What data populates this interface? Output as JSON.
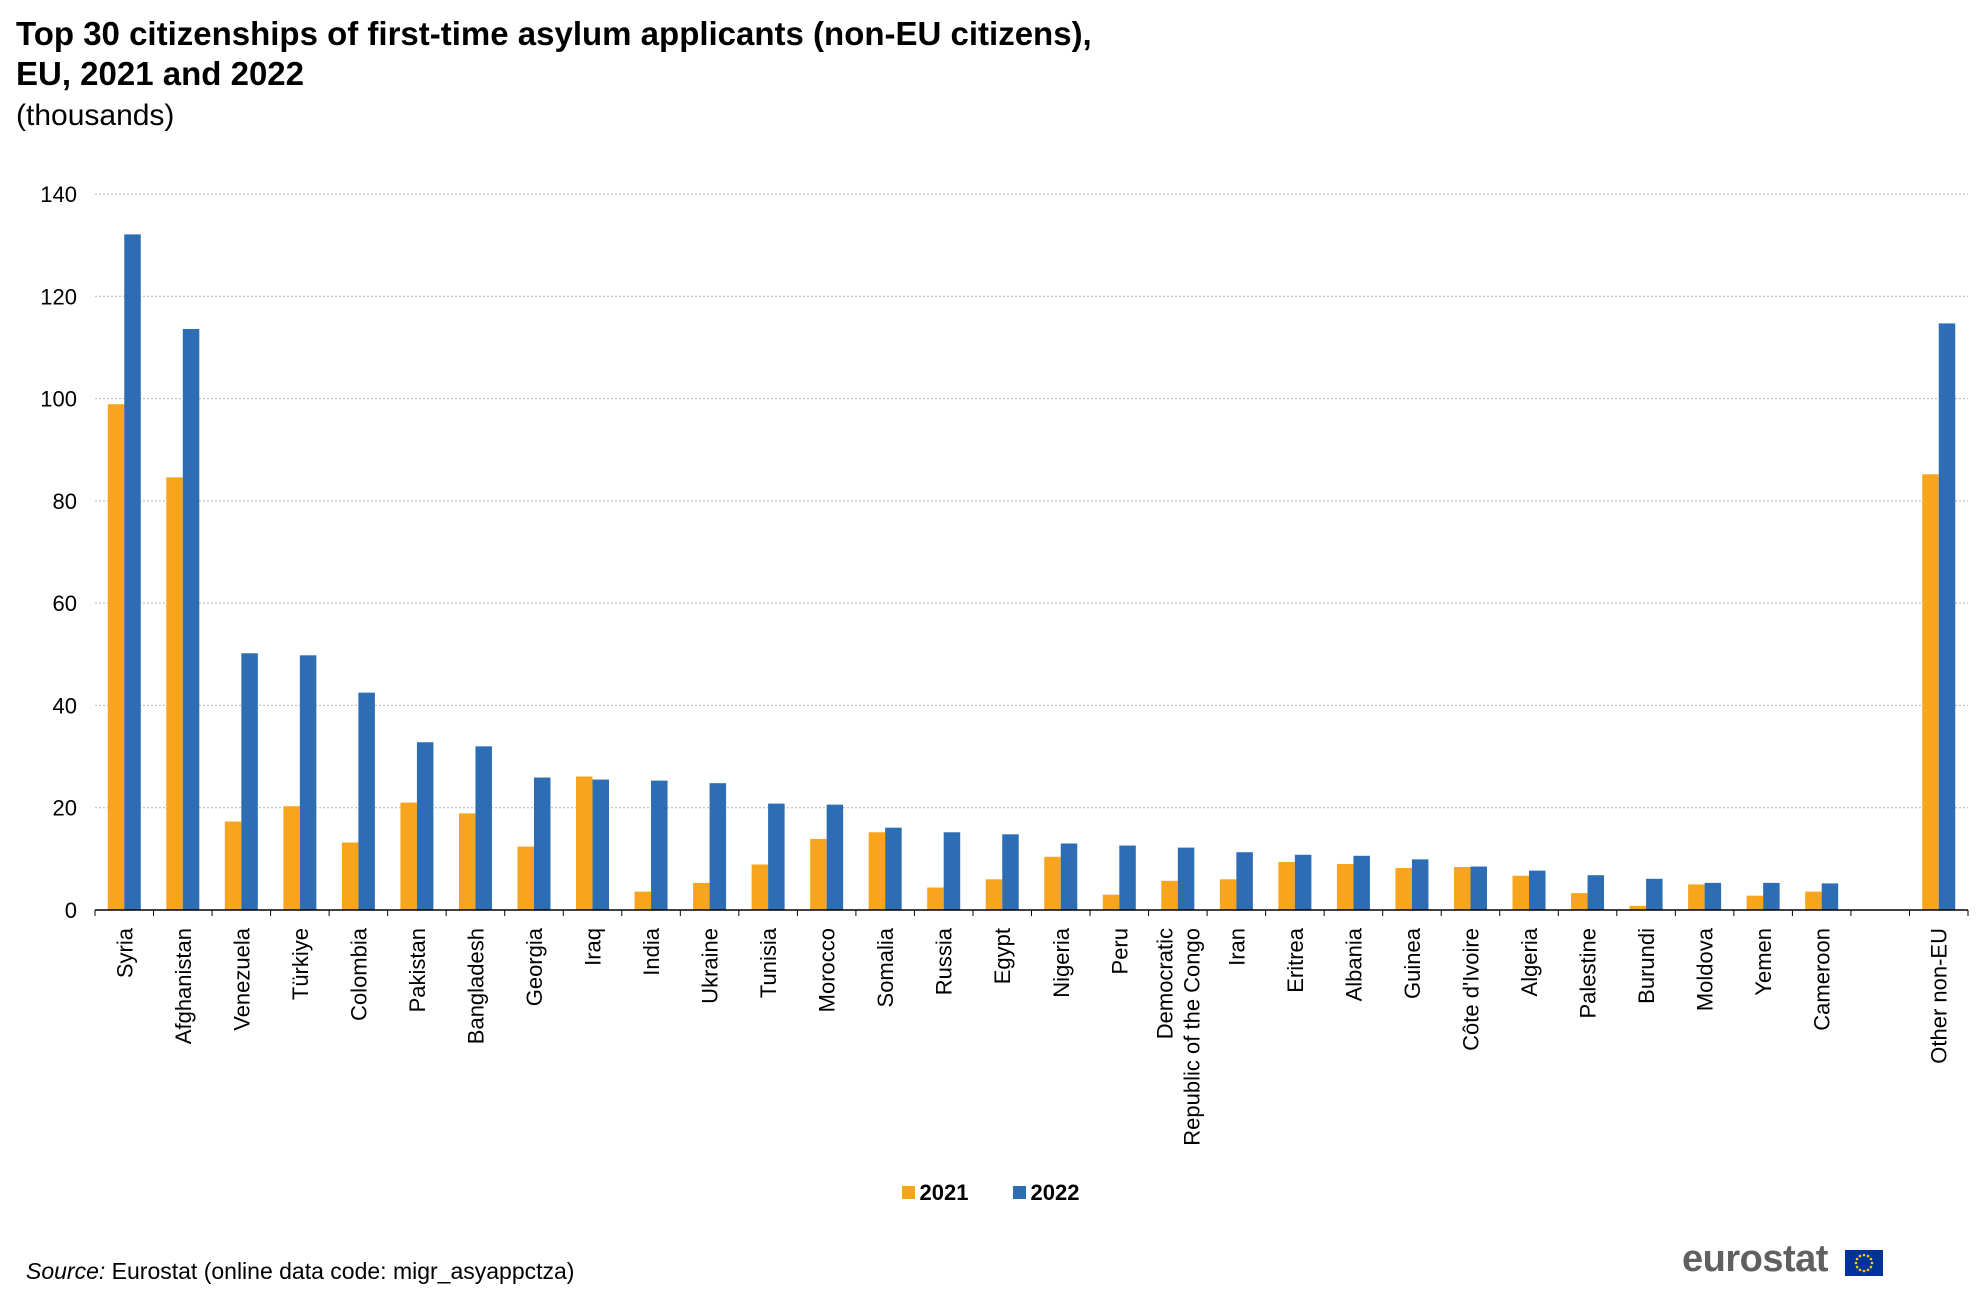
{
  "title_lines": [
    "Top 30 citizenships  of first-time asylum applicants (non-EU citizens),",
    "EU, 2021 and 2022"
  ],
  "subtitle": "(thousands)",
  "source_label": "Source:",
  "source_text": " Eurostat (online data code: migr_asyappctza)",
  "logo_text": "eurostat",
  "colors": {
    "2021": "#F8A51E",
    "2022": "#2C6DB4",
    "grid": "#b3b3b3",
    "axis": "#000000"
  },
  "chart_data": {
    "type": "bar",
    "title": "Top 30 citizenships  of first-time asylum applicants (non-EU citizens), EU, 2021 and 2022",
    "subtitle": "(thousands)",
    "xlabel": "",
    "ylabel": "",
    "ylim": [
      0,
      140
    ],
    "yticks": [
      0,
      20,
      40,
      60,
      80,
      100,
      120,
      140
    ],
    "grid": true,
    "legend_position": "bottom",
    "categories": [
      [
        "Syria"
      ],
      [
        "Afghanistan"
      ],
      [
        "Venezuela"
      ],
      [
        "Türkiye"
      ],
      [
        "Colombia"
      ],
      [
        "Pakistan"
      ],
      [
        "Bangladesh"
      ],
      [
        "Georgia"
      ],
      [
        "Iraq"
      ],
      [
        "India"
      ],
      [
        "Ukraine"
      ],
      [
        "Tunisia"
      ],
      [
        "Morocco"
      ],
      [
        "Somalia"
      ],
      [
        "Russia"
      ],
      [
        "Egypt"
      ],
      [
        "Nigeria"
      ],
      [
        "Peru"
      ],
      [
        "Democratic",
        "Republic of the Congo"
      ],
      [
        "Iran"
      ],
      [
        "Eritrea"
      ],
      [
        "Albania"
      ],
      [
        "Guinea"
      ],
      [
        "Côte d'Ivoire"
      ],
      [
        "Algeria"
      ],
      [
        "Palestine"
      ],
      [
        "Burundi"
      ],
      [
        "Moldova"
      ],
      [
        "Yemen"
      ],
      [
        "Cameroon"
      ],
      [
        ""
      ],
      [
        "Other non-EU"
      ]
    ],
    "series": [
      {
        "name": "2021",
        "values": [
          98.9,
          84.6,
          17.3,
          20.3,
          13.2,
          21.0,
          18.9,
          12.4,
          26.1,
          3.6,
          5.3,
          8.9,
          13.9,
          15.2,
          4.4,
          6.0,
          10.4,
          3.0,
          5.7,
          6.0,
          9.4,
          9.0,
          8.2,
          8.4,
          6.7,
          3.3,
          0.8,
          5.0,
          2.8,
          3.6,
          null,
          85.2
        ]
      },
      {
        "name": "2022",
        "values": [
          132.1,
          113.6,
          50.2,
          49.8,
          42.5,
          32.8,
          32.0,
          25.9,
          25.5,
          25.3,
          24.8,
          20.8,
          20.6,
          16.1,
          15.2,
          14.8,
          13.0,
          12.6,
          12.2,
          11.3,
          10.8,
          10.6,
          9.9,
          8.5,
          7.7,
          6.8,
          6.1,
          5.3,
          5.3,
          5.2,
          null,
          114.7
        ]
      }
    ]
  }
}
